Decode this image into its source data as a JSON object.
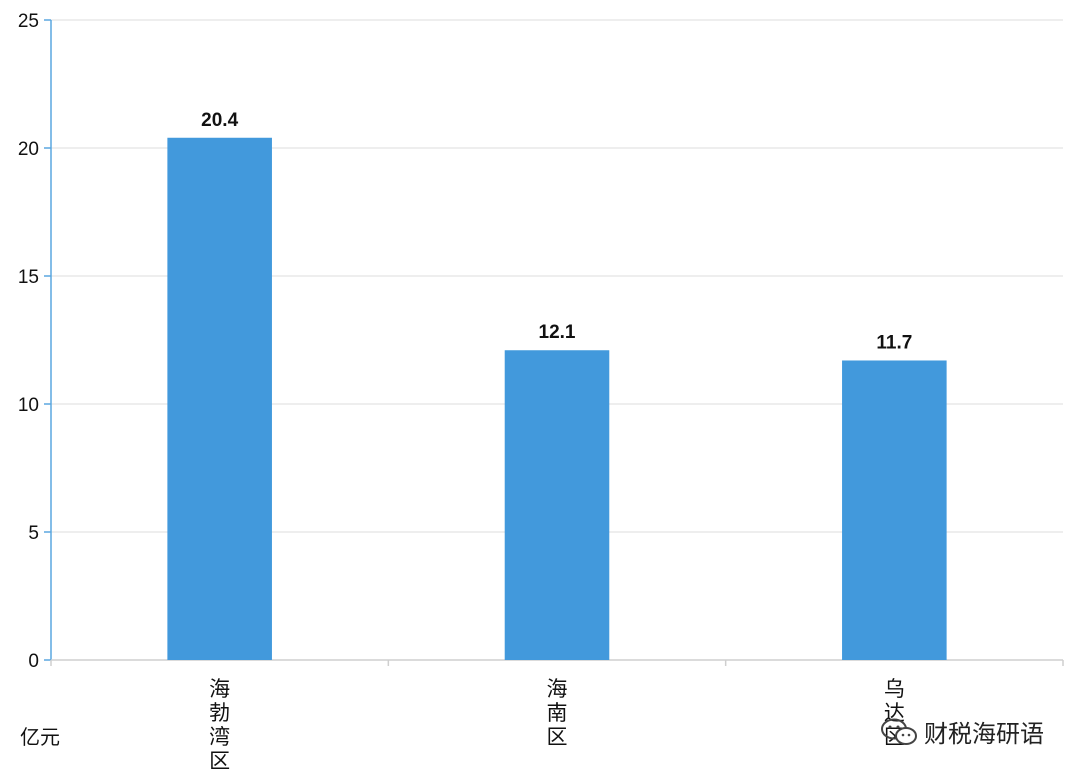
{
  "chart_data": {
    "type": "bar",
    "categories": [
      "海勃湾区",
      "海南区",
      "乌达区"
    ],
    "values": [
      20.4,
      12.1,
      11.7
    ],
    "data_labels": [
      "20.4",
      "12.1",
      "11.7"
    ],
    "ylabel": "亿元",
    "ylim": [
      0,
      25
    ],
    "yticks": [
      0,
      5,
      10,
      15,
      20,
      25
    ],
    "grid": true,
    "bar_color": "#4299dc"
  },
  "watermark": {
    "text": "财税海研语",
    "icon": "wechat-icon"
  }
}
